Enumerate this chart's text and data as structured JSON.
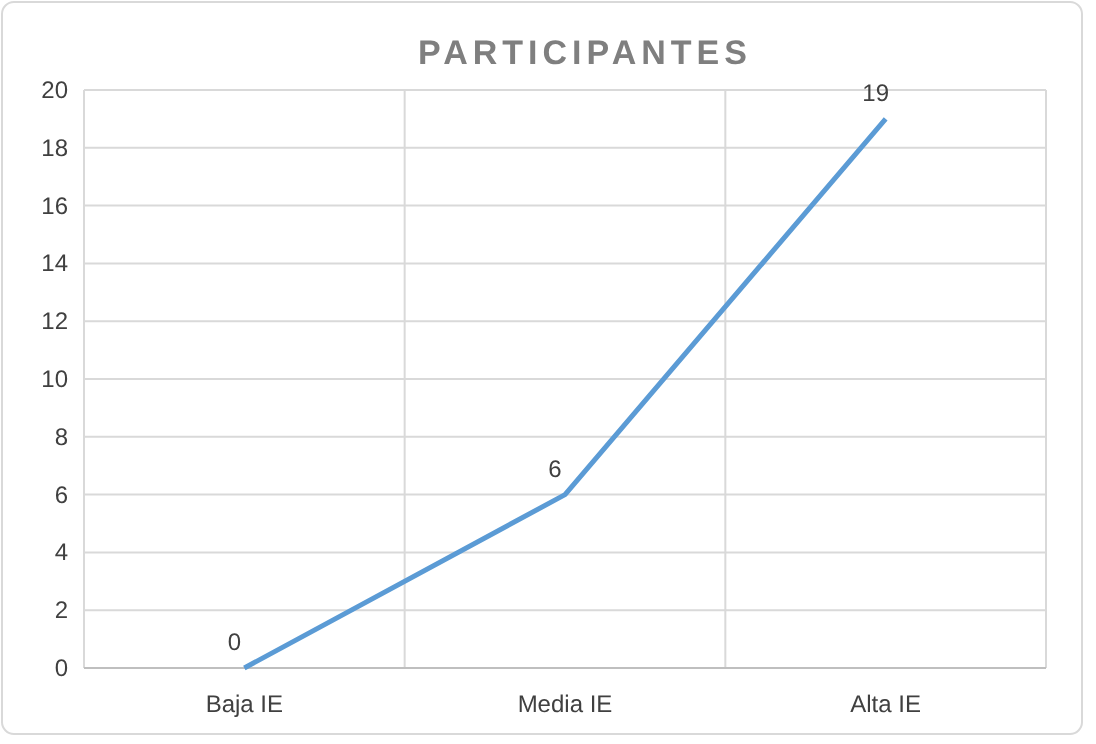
{
  "chart_data": {
    "type": "line",
    "title": "PARTICIPANTES",
    "categories": [
      "Baja IE",
      "Media IE",
      "Alta IE"
    ],
    "series": [
      {
        "color": "#5b9bd5",
        "values": [
          0,
          6,
          19
        ]
      }
    ],
    "ylim": [
      0,
      20
    ],
    "yticks": [
      0,
      2,
      4,
      6,
      8,
      10,
      12,
      14,
      16,
      18,
      20
    ],
    "grid": true,
    "data_labels": true,
    "marker": "none"
  }
}
